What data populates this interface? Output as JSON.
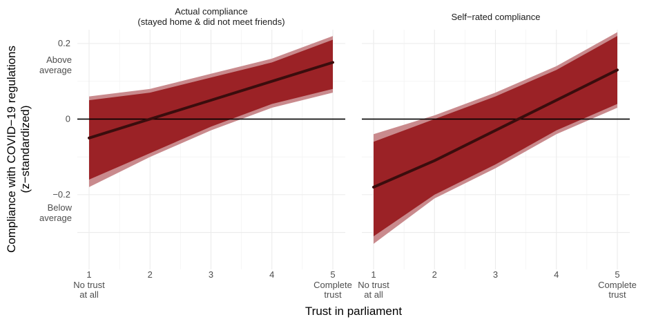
{
  "chart_data": {
    "type": "line",
    "xlabel": "Trust in parliament",
    "ylabel": "Compliance with COVID−19 regulations\n(z−standardized)",
    "xlim": [
      1,
      5
    ],
    "ylim": [
      -0.33,
      0.2
    ],
    "x_ticks": [
      {
        "value": 1,
        "label": "1",
        "sublabel": "No trust\nat all"
      },
      {
        "value": 2,
        "label": "2",
        "sublabel": ""
      },
      {
        "value": 3,
        "label": "3",
        "sublabel": ""
      },
      {
        "value": 4,
        "label": "4",
        "sublabel": ""
      },
      {
        "value": 5,
        "label": "5",
        "sublabel": "Complete\ntrust"
      }
    ],
    "y_ticks": [
      {
        "value": 0.2,
        "label": "0.2"
      },
      {
        "value": 0,
        "label": "0"
      },
      {
        "value": -0.2,
        "label": "−0.2"
      }
    ],
    "y_annotations": [
      {
        "value": 0.17,
        "text": "Above\naverage"
      },
      {
        "value": -0.2,
        "text": "Below\naverage"
      }
    ],
    "reference_line": 0,
    "colors": {
      "line": "#3a0d0d",
      "ci_inner": "#9b2226",
      "ci_outer": "#c98a8d",
      "reference": "#000000"
    },
    "panels": [
      {
        "title": "Actual compliance\n(stayed home & did not meet friends)",
        "x": [
          1,
          2,
          3,
          4,
          5
        ],
        "y": [
          -0.05,
          0.0,
          0.05,
          0.1,
          0.15
        ],
        "ci_inner_low": [
          -0.16,
          -0.09,
          -0.02,
          0.04,
          0.08
        ],
        "ci_inner_high": [
          0.05,
          0.07,
          0.11,
          0.15,
          0.21
        ],
        "ci_outer_low": [
          -0.18,
          -0.1,
          -0.03,
          0.03,
          0.07
        ],
        "ci_outer_high": [
          0.06,
          0.08,
          0.12,
          0.16,
          0.22
        ]
      },
      {
        "title": "Self−rated compliance",
        "x": [
          1,
          2,
          3,
          4,
          5
        ],
        "y": [
          -0.18,
          -0.11,
          -0.03,
          0.05,
          0.13
        ],
        "ci_inner_low": [
          -0.31,
          -0.2,
          -0.12,
          -0.03,
          0.04
        ],
        "ci_inner_high": [
          -0.06,
          0.0,
          0.06,
          0.13,
          0.22
        ],
        "ci_outer_low": [
          -0.33,
          -0.21,
          -0.13,
          -0.04,
          0.03
        ],
        "ci_outer_high": [
          -0.04,
          0.01,
          0.07,
          0.14,
          0.23
        ]
      }
    ]
  }
}
